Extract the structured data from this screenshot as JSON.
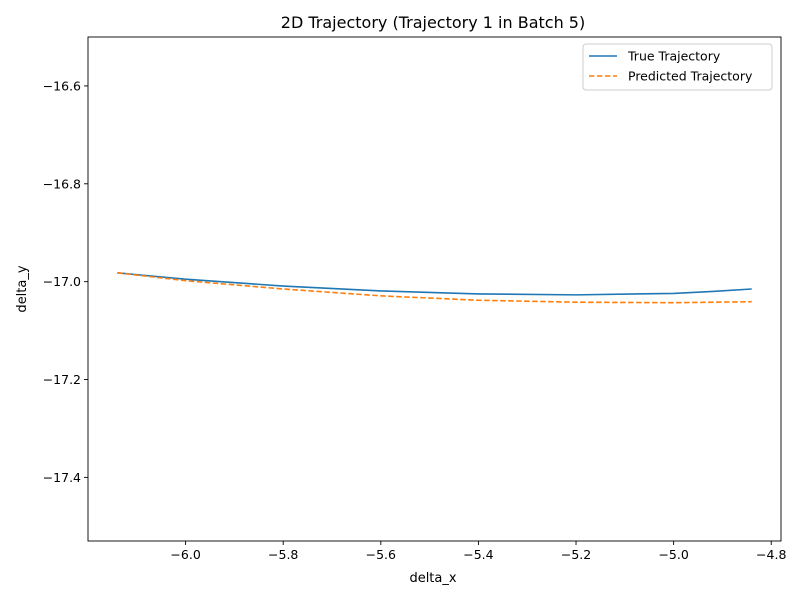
{
  "chart_data": {
    "type": "line",
    "title": "2D Trajectory (Trajectory 1 in Batch 5)",
    "xlabel": "delta_x",
    "ylabel": "delta_y",
    "xlim": [
      -6.2,
      -4.78
    ],
    "ylim": [
      -17.53,
      -16.5
    ],
    "xticks": [
      -6.0,
      -5.8,
      -5.6,
      -5.4,
      -5.2,
      -5.0,
      -4.8
    ],
    "xtick_labels": [
      "−6.0",
      "−5.8",
      "−5.6",
      "−5.4",
      "−5.2",
      "−5.0",
      "−4.8"
    ],
    "yticks": [
      -16.6,
      -16.8,
      -17.0,
      -17.2,
      -17.4
    ],
    "ytick_labels": [
      "−16.6",
      "−16.8",
      "−17.0",
      "−17.2",
      "−17.4"
    ],
    "grid": false,
    "legend_position": "top-right",
    "series": [
      {
        "name": "True Trajectory",
        "color": "#1f77b4",
        "style": "solid",
        "x": [
          -6.14,
          -6.0,
          -5.8,
          -5.6,
          -5.4,
          -5.2,
          -5.0,
          -4.92,
          -4.84
        ],
        "y": [
          -16.982,
          -16.995,
          -17.009,
          -17.019,
          -17.025,
          -17.027,
          -17.024,
          -17.02,
          -17.015
        ]
      },
      {
        "name": "Predicted Trajectory",
        "color": "#ff7f0e",
        "style": "dashed",
        "x": [
          -6.14,
          -6.0,
          -5.8,
          -5.6,
          -5.4,
          -5.2,
          -5.0,
          -4.84
        ],
        "y": [
          -16.982,
          -16.998,
          -17.015,
          -17.029,
          -17.038,
          -17.042,
          -17.043,
          -17.041
        ]
      }
    ]
  }
}
